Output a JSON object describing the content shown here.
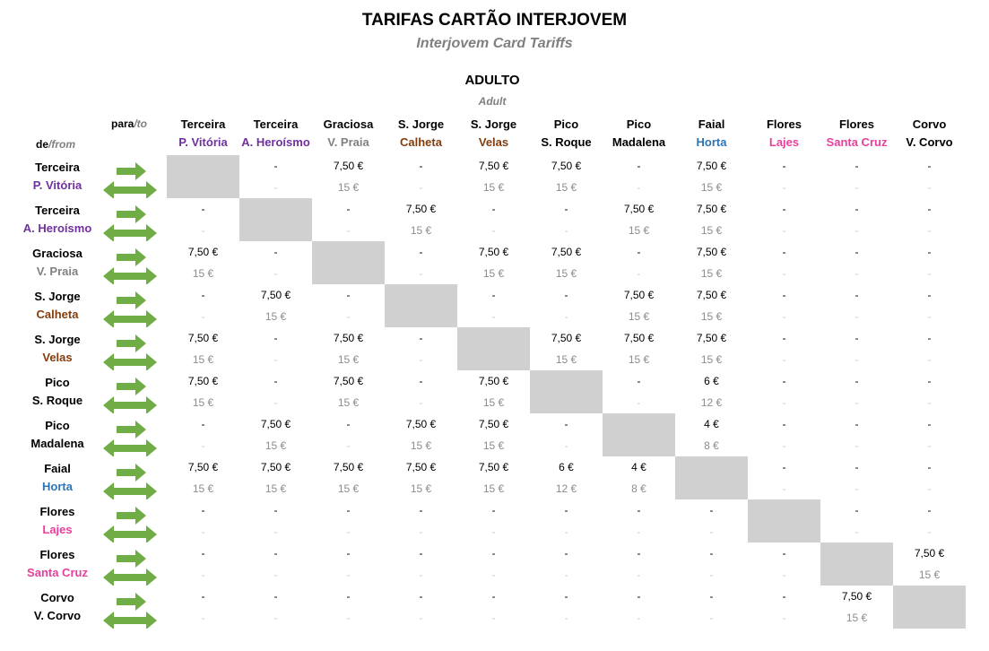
{
  "title": "TARIFAS CARTÃO INTERJOVEM",
  "subtitle": "Interjovem Card Tariffs",
  "category": "ADULTO",
  "category_en": "Adult",
  "header_to": "para",
  "header_to_en": "/to",
  "header_from": "de",
  "header_from_en": "/from",
  "colors": {
    "purple": "#7030a0",
    "gray": "#808080",
    "brown": "#843c0c",
    "blue": "#2e75b6",
    "pink": "#e83e9c",
    "black": "#000000",
    "arrow_green": "#70ad47",
    "diagonal_fill": "#d0d0d0"
  },
  "icons": {
    "one_way": "right-arrow-icon",
    "round_trip": "double-arrow-icon"
  },
  "locations": [
    {
      "island": "Terceira",
      "port": "P. Vitória",
      "port_color": "#7030a0"
    },
    {
      "island": "Terceira",
      "port": "A. Heroísmo",
      "port_color": "#7030a0"
    },
    {
      "island": "Graciosa",
      "port": "V. Praia",
      "port_color": "#808080"
    },
    {
      "island": "S. Jorge",
      "port": "Calheta",
      "port_color": "#843c0c"
    },
    {
      "island": "S. Jorge",
      "port": "Velas",
      "port_color": "#843c0c"
    },
    {
      "island": "Pico",
      "port": "S. Roque",
      "port_color": "#000000"
    },
    {
      "island": "Pico",
      "port": "Madalena",
      "port_color": "#000000"
    },
    {
      "island": "Faial",
      "port": "Horta",
      "port_color": "#2e75b6"
    },
    {
      "island": "Flores",
      "port": "Lajes",
      "port_color": "#e83e9c"
    },
    {
      "island": "Flores",
      "port": "Santa Cruz",
      "port_color": "#e83e9c"
    },
    {
      "island": "Corvo",
      "port": "V. Corvo",
      "port_color": "#000000"
    }
  ],
  "fares": [
    [
      null,
      [
        "-",
        "-"
      ],
      [
        "7,50 €",
        "15 €"
      ],
      [
        "-",
        "-"
      ],
      [
        "7,50 €",
        "15 €"
      ],
      [
        "7,50 €",
        "15 €"
      ],
      [
        "-",
        "-"
      ],
      [
        "7,50 €",
        "15 €"
      ],
      [
        "-",
        "-"
      ],
      [
        "-",
        "-"
      ],
      [
        "-",
        "-"
      ]
    ],
    [
      [
        "-",
        "-"
      ],
      null,
      [
        "-",
        "-"
      ],
      [
        "7,50 €",
        "15 €"
      ],
      [
        "-",
        "-"
      ],
      [
        "-",
        "-"
      ],
      [
        "7,50 €",
        "15 €"
      ],
      [
        "7,50 €",
        "15 €"
      ],
      [
        "-",
        "-"
      ],
      [
        "-",
        "-"
      ],
      [
        "-",
        "-"
      ]
    ],
    [
      [
        "7,50 €",
        "15 €"
      ],
      [
        "-",
        "-"
      ],
      null,
      [
        "-",
        "-"
      ],
      [
        "7,50 €",
        "15 €"
      ],
      [
        "7,50 €",
        "15 €"
      ],
      [
        "-",
        "-"
      ],
      [
        "7,50 €",
        "15 €"
      ],
      [
        "-",
        "-"
      ],
      [
        "-",
        "-"
      ],
      [
        "-",
        "-"
      ]
    ],
    [
      [
        "-",
        "-"
      ],
      [
        "7,50 €",
        "15 €"
      ],
      [
        "-",
        "-"
      ],
      null,
      [
        "-",
        "-"
      ],
      [
        "-",
        "-"
      ],
      [
        "7,50 €",
        "15 €"
      ],
      [
        "7,50 €",
        "15 €"
      ],
      [
        "-",
        "-"
      ],
      [
        "-",
        "-"
      ],
      [
        "-",
        "-"
      ]
    ],
    [
      [
        "7,50 €",
        "15 €"
      ],
      [
        "-",
        "-"
      ],
      [
        "7,50 €",
        "15 €"
      ],
      [
        "-",
        "-"
      ],
      null,
      [
        "7,50 €",
        "15 €"
      ],
      [
        "7,50 €",
        "15 €"
      ],
      [
        "7,50 €",
        "15 €"
      ],
      [
        "-",
        "-"
      ],
      [
        "-",
        "-"
      ],
      [
        "-",
        "-"
      ]
    ],
    [
      [
        "7,50 €",
        "15 €"
      ],
      [
        "-",
        "-"
      ],
      [
        "7,50 €",
        "15 €"
      ],
      [
        "-",
        "-"
      ],
      [
        "7,50 €",
        "15 €"
      ],
      null,
      [
        "-",
        "-"
      ],
      [
        "6 €",
        "12 €"
      ],
      [
        "-",
        "-"
      ],
      [
        "-",
        "-"
      ],
      [
        "-",
        "-"
      ]
    ],
    [
      [
        "-",
        "-"
      ],
      [
        "7,50 €",
        "15 €"
      ],
      [
        "-",
        "-"
      ],
      [
        "7,50 €",
        "15 €"
      ],
      [
        "7,50 €",
        "15 €"
      ],
      [
        "-",
        "-"
      ],
      null,
      [
        "4 €",
        "8 €"
      ],
      [
        "-",
        "-"
      ],
      [
        "-",
        "-"
      ],
      [
        "-",
        "-"
      ]
    ],
    [
      [
        "7,50 €",
        "15 €"
      ],
      [
        "7,50 €",
        "15 €"
      ],
      [
        "7,50 €",
        "15 €"
      ],
      [
        "7,50 €",
        "15 €"
      ],
      [
        "7,50 €",
        "15 €"
      ],
      [
        "6 €",
        "12 €"
      ],
      [
        "4 €",
        "8 €"
      ],
      null,
      [
        "-",
        "-"
      ],
      [
        "-",
        "-"
      ],
      [
        "-",
        "-"
      ]
    ],
    [
      [
        "-",
        "-"
      ],
      [
        "-",
        "-"
      ],
      [
        "-",
        "-"
      ],
      [
        "-",
        "-"
      ],
      [
        "-",
        "-"
      ],
      [
        "-",
        "-"
      ],
      [
        "-",
        "-"
      ],
      [
        "-",
        "-"
      ],
      null,
      [
        "-",
        "-"
      ],
      [
        "-",
        "-"
      ]
    ],
    [
      [
        "-",
        "-"
      ],
      [
        "-",
        "-"
      ],
      [
        "-",
        "-"
      ],
      [
        "-",
        "-"
      ],
      [
        "-",
        "-"
      ],
      [
        "-",
        "-"
      ],
      [
        "-",
        "-"
      ],
      [
        "-",
        "-"
      ],
      [
        "-",
        "-"
      ],
      null,
      [
        "7,50 €",
        "15 €"
      ]
    ],
    [
      [
        "-",
        "-"
      ],
      [
        "-",
        "-"
      ],
      [
        "-",
        "-"
      ],
      [
        "-",
        "-"
      ],
      [
        "-",
        "-"
      ],
      [
        "-",
        "-"
      ],
      [
        "-",
        "-"
      ],
      [
        "-",
        "-"
      ],
      [
        "-",
        "-"
      ],
      [
        "7,50 €",
        "15 €"
      ],
      null
    ]
  ]
}
